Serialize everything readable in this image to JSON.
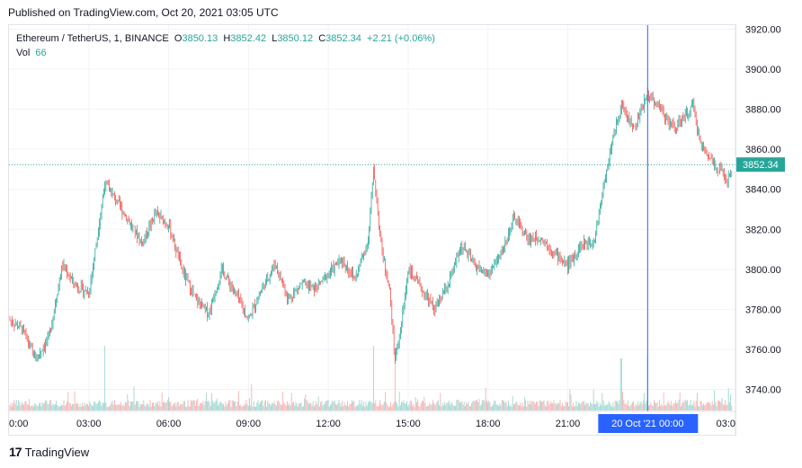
{
  "header": {
    "published": "Published on TradingView.com, Oct 20, 2021 03:05 UTC"
  },
  "legend": {
    "symbol": "Ethereum / TetherUS, 1, BINANCE",
    "o_label": "O",
    "o": "3850.13",
    "h_label": "H",
    "h": "3852.42",
    "l_label": "L",
    "l": "3850.12",
    "c_label": "C",
    "c": "3852.34",
    "change": "+2.21 (+0.06%)",
    "vol_label": "Vol",
    "vol": "66"
  },
  "footer": {
    "brand": "TradingView",
    "logo_mark": "17"
  },
  "colors": {
    "up": "#26a69a",
    "down": "#ef5350",
    "crosshair": "#2962ff",
    "last_price": "#26a69a"
  },
  "chart_data": {
    "type": "candlestick",
    "symbol": "Ethereum / TetherUS",
    "interval_minutes": 1,
    "exchange": "BINANCE",
    "y_ticks": [
      "3740.00",
      "3760.00",
      "3780.00",
      "3800.00",
      "3820.00",
      "3840.00",
      "3860.00",
      "3880.00",
      "3900.00",
      "3920.00"
    ],
    "ylim": [
      3729,
      3922
    ],
    "x_ticks": [
      "0:00",
      "03:00",
      "06:00",
      "09:00",
      "12:00",
      "15:00",
      "18:00",
      "21:00",
      "03:0"
    ],
    "crosshair_label": "20 Oct '21   00:00",
    "last_price_label": "3852.34",
    "last_price": 3852.34,
    "price_path": [
      [
        0,
        3775
      ],
      [
        0.5,
        3770
      ],
      [
        1,
        3755
      ],
      [
        1.5,
        3766
      ],
      [
        2,
        3802
      ],
      [
        2.5,
        3792
      ],
      [
        3,
        3788
      ],
      [
        3.3,
        3815
      ],
      [
        3.6,
        3843
      ],
      [
        4,
        3835
      ],
      [
        4.5,
        3824
      ],
      [
        5,
        3813
      ],
      [
        5.5,
        3828
      ],
      [
        6,
        3822
      ],
      [
        6.5,
        3800
      ],
      [
        7,
        3785
      ],
      [
        7.5,
        3778
      ],
      [
        8,
        3800
      ],
      [
        8.5,
        3788
      ],
      [
        9,
        3775
      ],
      [
        9.5,
        3790
      ],
      [
        10,
        3803
      ],
      [
        10.5,
        3785
      ],
      [
        11,
        3793
      ],
      [
        11.5,
        3790
      ],
      [
        12,
        3798
      ],
      [
        12.5,
        3805
      ],
      [
        13,
        3795
      ],
      [
        13.5,
        3815
      ],
      [
        13.7,
        3850
      ],
      [
        14,
        3810
      ],
      [
        14.3,
        3790
      ],
      [
        14.5,
        3755
      ],
      [
        14.7,
        3768
      ],
      [
        15,
        3800
      ],
      [
        15.5,
        3790
      ],
      [
        16,
        3780
      ],
      [
        16.5,
        3792
      ],
      [
        17,
        3812
      ],
      [
        17.5,
        3802
      ],
      [
        18,
        3797
      ],
      [
        18.5,
        3808
      ],
      [
        19,
        3826
      ],
      [
        19.5,
        3815
      ],
      [
        20,
        3816
      ],
      [
        20.5,
        3808
      ],
      [
        21,
        3802
      ],
      [
        21.5,
        3812
      ],
      [
        22,
        3815
      ],
      [
        22.3,
        3838
      ],
      [
        22.6,
        3860
      ],
      [
        23,
        3882
      ],
      [
        23.5,
        3870
      ],
      [
        24,
        3888
      ],
      [
        24.5,
        3880
      ],
      [
        25,
        3870
      ],
      [
        25.5,
        3878
      ],
      [
        25.7,
        3882
      ],
      [
        26,
        3862
      ],
      [
        26.5,
        3853
      ],
      [
        27,
        3845
      ],
      [
        27.3,
        3850
      ]
    ],
    "volume_spikes": [
      [
        3.6,
        72
      ],
      [
        13.7,
        72
      ],
      [
        14.5,
        65
      ],
      [
        23,
        58
      ],
      [
        24,
        60
      ]
    ]
  }
}
